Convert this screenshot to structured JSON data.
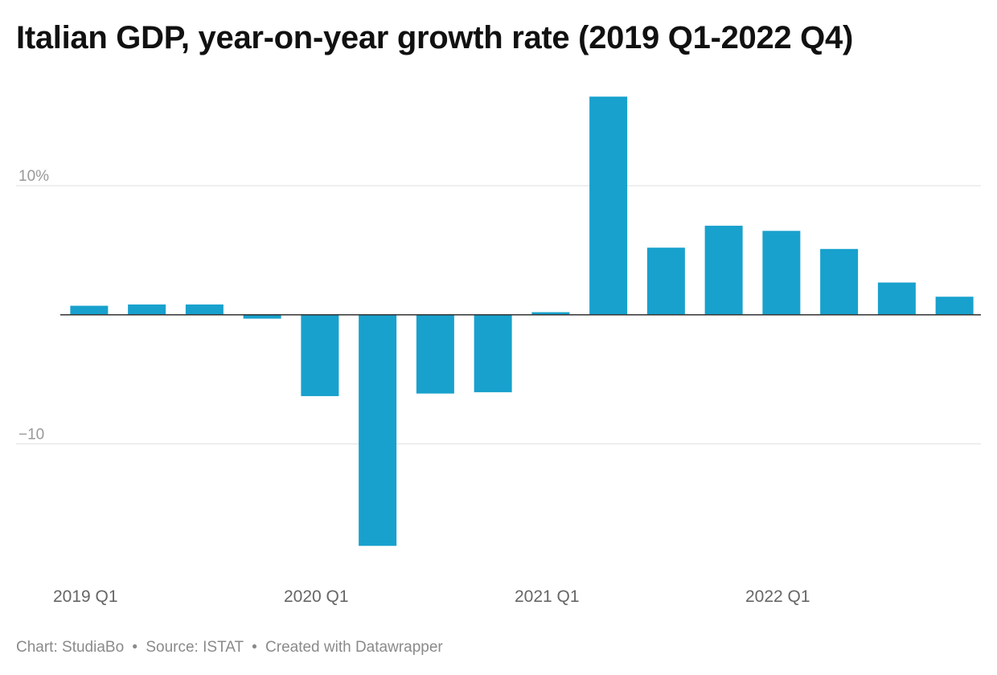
{
  "chart_data": {
    "type": "bar",
    "title": "Italian GDP, year-on-year growth rate (2019 Q1-2022 Q4)",
    "categories": [
      "2019 Q1",
      "2019 Q2",
      "2019 Q3",
      "2019 Q4",
      "2020 Q1",
      "2020 Q2",
      "2020 Q3",
      "2020 Q4",
      "2021 Q1",
      "2021 Q2",
      "2021 Q3",
      "2021 Q4",
      "2022 Q1",
      "2022 Q2",
      "2022 Q3",
      "2022 Q4"
    ],
    "values": [
      0.7,
      0.8,
      0.8,
      -0.3,
      -6.3,
      -17.9,
      -6.1,
      -6.0,
      0.2,
      16.9,
      5.2,
      6.9,
      6.5,
      5.1,
      2.5,
      1.4
    ],
    "xlabel": "",
    "ylabel": "",
    "ylim": [
      -19.5,
      17.6
    ],
    "y_ticks": [
      {
        "value": 10,
        "label": "10%"
      },
      {
        "value": -10,
        "label": "−10"
      }
    ],
    "x_tick_labels": [
      {
        "index": 0,
        "label": "2019 Q1"
      },
      {
        "index": 4,
        "label": "2020 Q1"
      },
      {
        "index": 8,
        "label": "2021 Q1"
      },
      {
        "index": 12,
        "label": "2022 Q1"
      }
    ],
    "grid": true,
    "legend": "none",
    "bar_color": "#18a1cd",
    "gridline_color": "#e6e6e6",
    "zero_line_color": "#333333",
    "tick_label_color": "#999999",
    "x_label_color": "#666666"
  },
  "footer": {
    "chart_credit": "Chart: StudiaBo",
    "separator": "•",
    "source": "Source: ISTAT",
    "created_with": "Created with Datawrapper"
  }
}
